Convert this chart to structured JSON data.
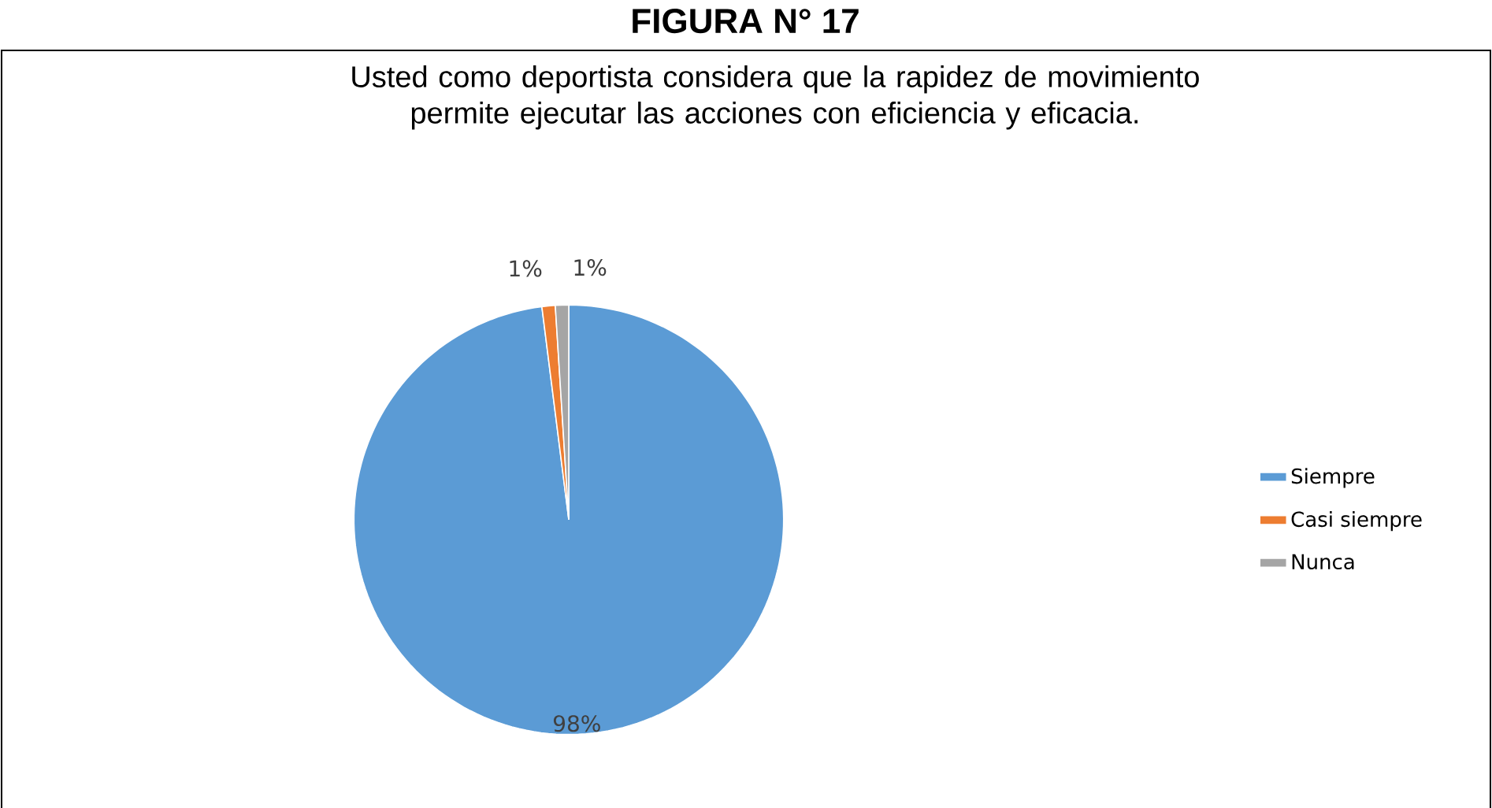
{
  "chart_data": {
    "type": "pie",
    "title": "Usted como deportista considera que la  rapidez de movimiento  permite ejecutar las acciones con eficiencia y eficacia.",
    "annotations": [
      "FIGURA N° 17"
    ],
    "categories": [
      "Siempre",
      "Casi siempre",
      "Nunca"
    ],
    "values": [
      98,
      1,
      1
    ],
    "colors": [
      "#5b9bd5",
      "#ed7d31",
      "#a5a5a5"
    ],
    "value_labels": [
      "98%",
      "1%",
      "1%"
    ],
    "legend": "right"
  }
}
